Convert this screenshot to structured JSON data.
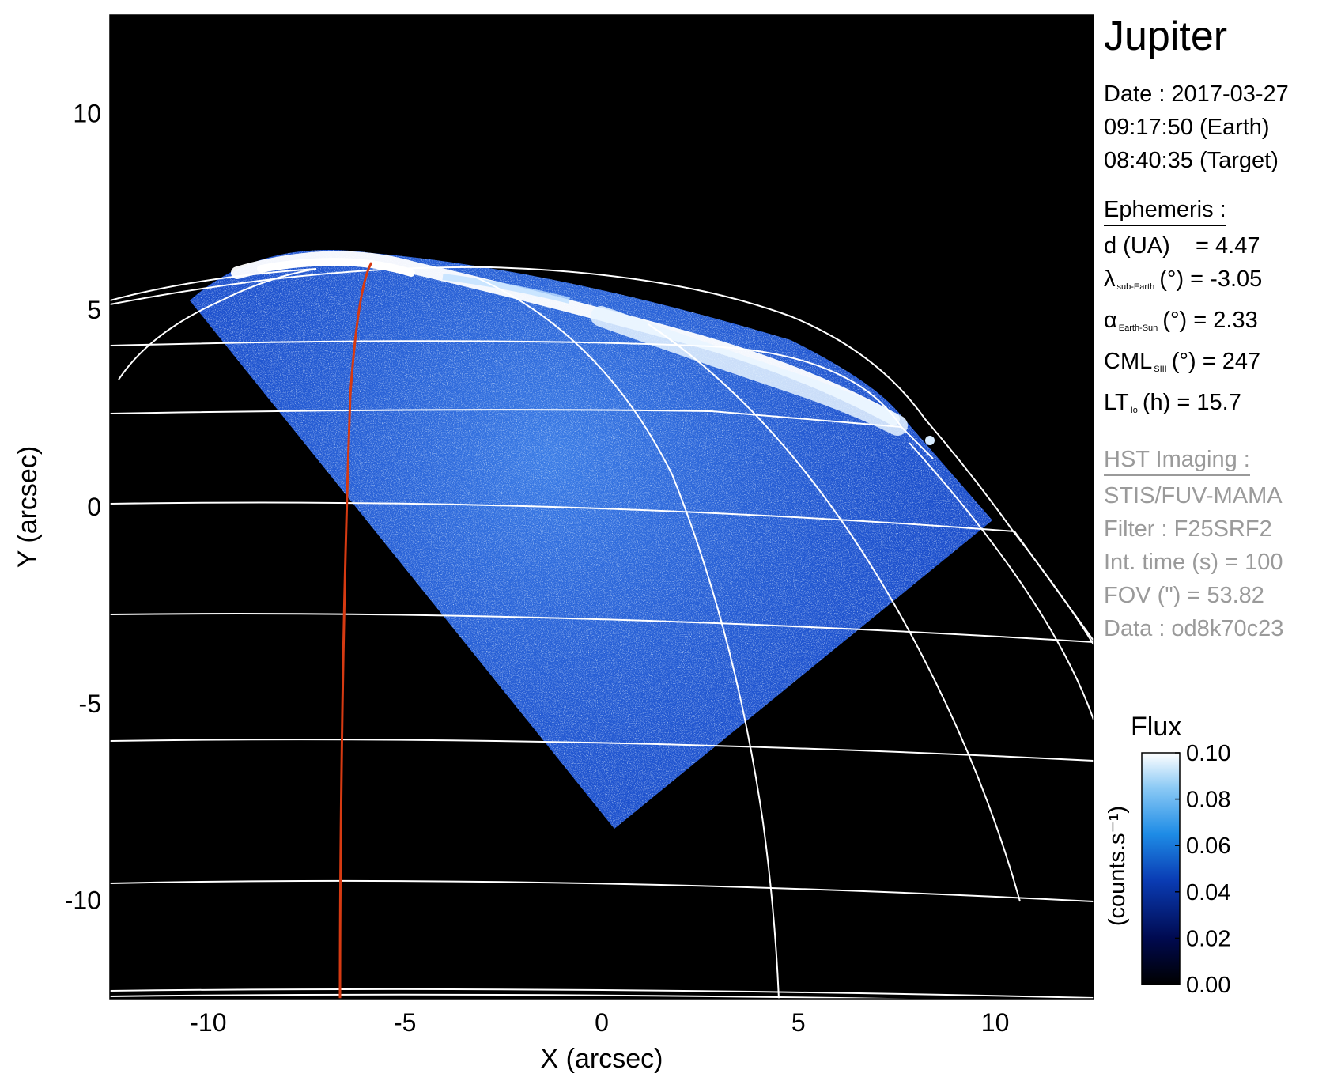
{
  "image": {
    "type": "HST STIS far-UV auroral image of Jupiter",
    "xlabel": "X (arcsec)",
    "ylabel": "Y (arcsec)",
    "xlim": [
      -12.5,
      12.5
    ],
    "ylim": [
      -12.5,
      12.5
    ],
    "x_ticks": [
      "-10",
      "-5",
      "0",
      "5",
      "10"
    ],
    "y_ticks": [
      "10",
      "5",
      "0",
      "-5",
      "-10"
    ],
    "colors": {
      "background": "#000000",
      "emission": "#1f6fe0",
      "aurora": "#ffffff",
      "grid": "#ffffff",
      "orbit_trace": "#d63a12"
    }
  },
  "info": {
    "title": "Jupiter",
    "date_line": "Date : 2017-03-27",
    "time_earth": "09:17:50 (Earth)",
    "time_target": "08:40:35 (Target)",
    "ephemeris_header": "Ephemeris :",
    "d_line": "d (UA)    = 4.47",
    "lambda_symbol": "λ",
    "lambda_sub": "sub-Earth",
    "lambda_rest": "(°) = -3.05",
    "alpha_symbol": "α",
    "alpha_sub": "Earth-Sun",
    "alpha_rest": "(°) = 2.33",
    "cml_main": "CML",
    "cml_sub": "SIII",
    "cml_rest": "(°) = 247",
    "lt_main": "LT",
    "lt_sub": "Io",
    "lt_rest": "(h) = 15.7",
    "hst_header": "HST Imaging :",
    "instrument": "STIS/FUV-MAMA",
    "filter": "Filter : F25SRF2",
    "int_time": "Int. time (s) = 100",
    "fov": "FOV (\") = 53.82",
    "data_id": "Data : od8k70c23"
  },
  "colorbar": {
    "title": "Flux",
    "units": "(counts.s⁻¹)",
    "ticks": [
      "0.10",
      "0.08",
      "0.06",
      "0.04",
      "0.02",
      "0.00"
    ]
  }
}
